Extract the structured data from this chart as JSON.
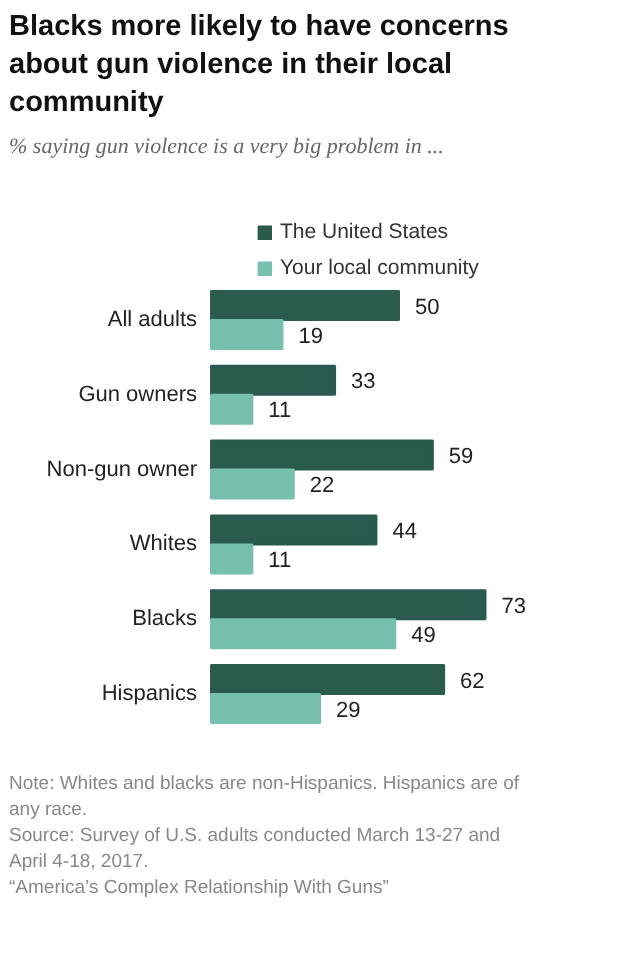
{
  "chart_data": {
    "type": "bar",
    "orientation": "horizontal",
    "title": "Blacks more likely to have concerns about gun violence in their local community",
    "subtitle": "% saying gun violence is a very big problem in ...",
    "categories": [
      "All adults",
      "Gun owners",
      "Non-gun owner",
      "Whites",
      "Blacks",
      "Hispanics"
    ],
    "series": [
      {
        "name": "The United States",
        "color": "#2b5a4f",
        "values": [
          50,
          33,
          59,
          44,
          73,
          62
        ]
      },
      {
        "name": "Your local community",
        "color": "#77c0ae",
        "values": [
          19,
          11,
          22,
          11,
          49,
          29
        ]
      }
    ],
    "data_labels": true,
    "legend": "top",
    "annotations": [
      "Note: Whites and blacks are non-Hispanics. Hispanics are of any race.",
      "Source: Survey of U.S. adults conducted March 13-27 and April 4-18, 2017.",
      "“America’s Complex Relationship With Guns”"
    ]
  }
}
